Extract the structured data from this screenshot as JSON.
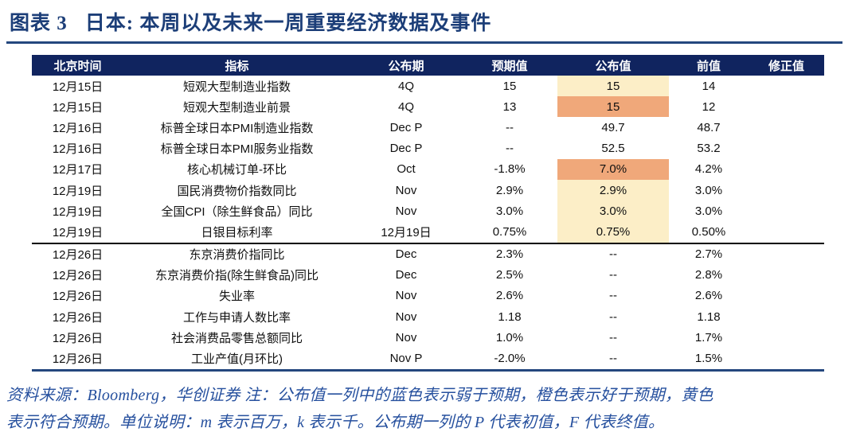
{
  "title": {
    "figure_label": "图表 3",
    "text": "日本: 本周以及未来一周重要经济数据及事件"
  },
  "colors": {
    "header_navy": "#10245f",
    "title_navy": "#1c3e78",
    "rule_navy": "#24477e",
    "footnote_blue": "#26509e",
    "highlight_yellow": "#fceec7",
    "highlight_orange": "#f0a87a",
    "section_divider_black": "#000000"
  },
  "table": {
    "columns": [
      "北京时间",
      "指标",
      "公布期",
      "预期值",
      "公布值",
      "前值",
      "修正值"
    ],
    "rows": [
      {
        "date": "12月15日",
        "indicator": "短观大型制造业指数",
        "period": "4Q",
        "expected": "15",
        "actual": "15",
        "prior": "14",
        "revised": "",
        "highlight": "yellow"
      },
      {
        "date": "12月15日",
        "indicator": "短观大型制造业前景",
        "period": "4Q",
        "expected": "13",
        "actual": "15",
        "prior": "12",
        "revised": "",
        "highlight": "orange"
      },
      {
        "date": "12月16日",
        "indicator": "标普全球日本PMI制造业指数",
        "period": "Dec P",
        "expected": "--",
        "actual": "49.7",
        "prior": "48.7",
        "revised": "",
        "highlight": "none"
      },
      {
        "date": "12月16日",
        "indicator": "标普全球日本PMI服务业指数",
        "period": "Dec P",
        "expected": "--",
        "actual": "52.5",
        "prior": "53.2",
        "revised": "",
        "highlight": "none"
      },
      {
        "date": "12月17日",
        "indicator": "核心机械订单-环比",
        "period": "Oct",
        "expected": "-1.8%",
        "actual": "7.0%",
        "prior": "4.2%",
        "revised": "",
        "highlight": "orange"
      },
      {
        "date": "12月19日",
        "indicator": "国民消费物价指数同比",
        "period": "Nov",
        "expected": "2.9%",
        "actual": "2.9%",
        "prior": "3.0%",
        "revised": "",
        "highlight": "yellow"
      },
      {
        "date": "12月19日",
        "indicator": "全国CPI（除生鲜食品）同比",
        "period": "Nov",
        "expected": "3.0%",
        "actual": "3.0%",
        "prior": "3.0%",
        "revised": "",
        "highlight": "yellow"
      },
      {
        "date": "12月19日",
        "indicator": "日银目标利率",
        "period": "12月19日",
        "expected": "0.75%",
        "actual": "0.75%",
        "prior": "0.50%",
        "revised": "",
        "highlight": "yellow"
      },
      {
        "date": "12月26日",
        "indicator": "东京消费价指同比",
        "period": "Dec",
        "expected": "2.3%",
        "actual": "--",
        "prior": "2.7%",
        "revised": "",
        "highlight": "none",
        "divider_above": true
      },
      {
        "date": "12月26日",
        "indicator": "东京消费价指(除生鲜食品)同比",
        "period": "Dec",
        "expected": "2.5%",
        "actual": "--",
        "prior": "2.8%",
        "revised": "",
        "highlight": "none"
      },
      {
        "date": "12月26日",
        "indicator": "失业率",
        "period": "Nov",
        "expected": "2.6%",
        "actual": "--",
        "prior": "2.6%",
        "revised": "",
        "highlight": "none"
      },
      {
        "date": "12月26日",
        "indicator": "工作与申请人数比率",
        "period": "Nov",
        "expected": "1.18",
        "actual": "--",
        "prior": "1.18",
        "revised": "",
        "highlight": "none"
      },
      {
        "date": "12月26日",
        "indicator": "社会消费品零售总额同比",
        "period": "Nov",
        "expected": "1.0%",
        "actual": "--",
        "prior": "1.7%",
        "revised": "",
        "highlight": "none"
      },
      {
        "date": "12月26日",
        "indicator": "工业产值(月环比)",
        "period": "Nov P",
        "expected": "-2.0%",
        "actual": "--",
        "prior": "1.5%",
        "revised": "",
        "highlight": "none"
      }
    ]
  },
  "footnote": {
    "line1": "资料来源：Bloomberg，华创证券 注：公布值一列中的蓝色表示弱于预期，橙色表示好于预期，黄色",
    "line2": "表示符合预期。单位说明：m 表示百万，k 表示千。公布期一列的 P 代表初值，F 代表终值。"
  }
}
